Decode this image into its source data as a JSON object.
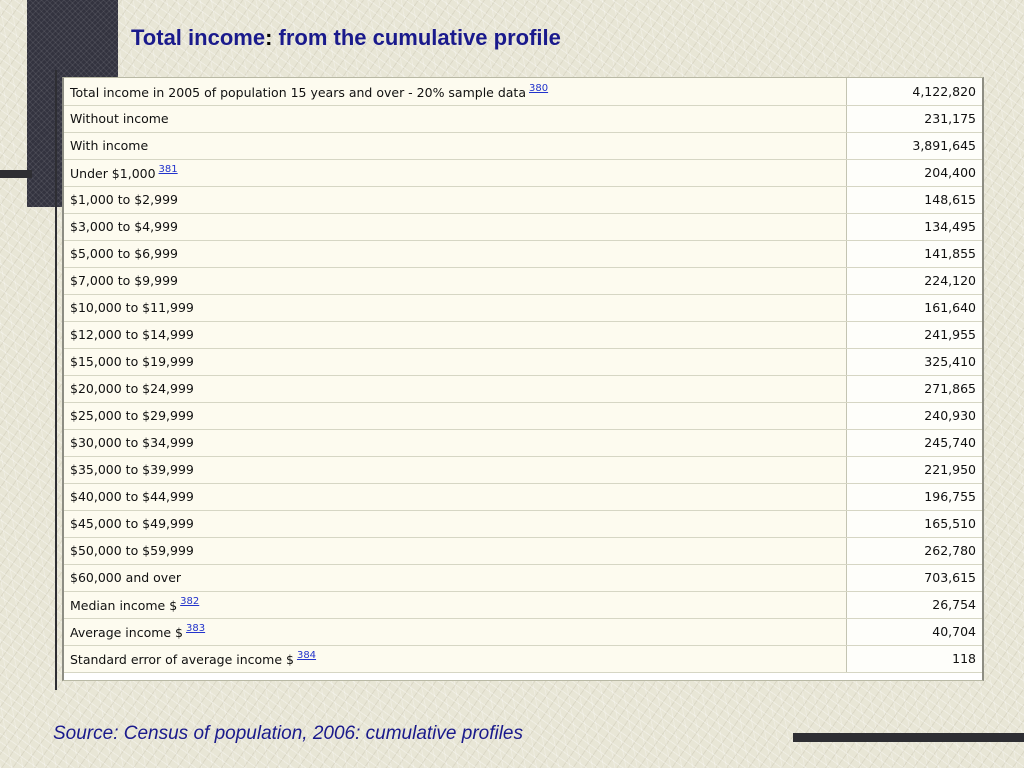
{
  "title": {
    "main": "Total income",
    "colon": ":",
    "sub": " from the cumulative profile"
  },
  "rows": [
    {
      "label": "Total income in 2005 of population 15 years and over - 20% sample data",
      "footnote": "380",
      "value": "4,122,820",
      "indent": 0
    },
    {
      "label": "Without income",
      "footnote": "",
      "value": "231,175",
      "indent": 1
    },
    {
      "label": "With income",
      "footnote": "",
      "value": "3,891,645",
      "indent": 1
    },
    {
      "label": "Under $1,000",
      "footnote": "381",
      "value": "204,400",
      "indent": 2
    },
    {
      "label": "$1,000 to $2,999",
      "footnote": "",
      "value": "148,615",
      "indent": 2
    },
    {
      "label": "$3,000 to $4,999",
      "footnote": "",
      "value": "134,495",
      "indent": 2
    },
    {
      "label": "$5,000 to $6,999",
      "footnote": "",
      "value": "141,855",
      "indent": 2
    },
    {
      "label": "$7,000 to $9,999",
      "footnote": "",
      "value": "224,120",
      "indent": 2
    },
    {
      "label": "$10,000 to $11,999",
      "footnote": "",
      "value": "161,640",
      "indent": 2
    },
    {
      "label": "$12,000 to $14,999",
      "footnote": "",
      "value": "241,955",
      "indent": 2
    },
    {
      "label": "$15,000 to $19,999",
      "footnote": "",
      "value": "325,410",
      "indent": 2
    },
    {
      "label": "$20,000 to $24,999",
      "footnote": "",
      "value": "271,865",
      "indent": 2
    },
    {
      "label": "$25,000 to $29,999",
      "footnote": "",
      "value": "240,930",
      "indent": 2
    },
    {
      "label": "$30,000 to $34,999",
      "footnote": "",
      "value": "245,740",
      "indent": 2
    },
    {
      "label": "$35,000 to $39,999",
      "footnote": "",
      "value": "221,950",
      "indent": 2
    },
    {
      "label": "$40,000 to $44,999",
      "footnote": "",
      "value": "196,755",
      "indent": 2
    },
    {
      "label": "$45,000 to $49,999",
      "footnote": "",
      "value": "165,510",
      "indent": 2
    },
    {
      "label": "$50,000 to $59,999",
      "footnote": "",
      "value": "262,780",
      "indent": 2
    },
    {
      "label": "$60,000 and over",
      "footnote": "",
      "value": "703,615",
      "indent": 2
    },
    {
      "label": "Median income $",
      "footnote": "382",
      "value": "26,754",
      "indent": 1
    },
    {
      "label": "Average income $",
      "footnote": "383",
      "value": "40,704",
      "indent": 1
    },
    {
      "label": "Standard error of average income $",
      "footnote": "384",
      "value": "118",
      "indent": 1
    }
  ],
  "source": "Source: Census of population, 2006: cumulative profiles",
  "colors": {
    "title": "#1a1a8c",
    "footnote_link": "#2233cc",
    "accent_dark": "#33333f"
  }
}
